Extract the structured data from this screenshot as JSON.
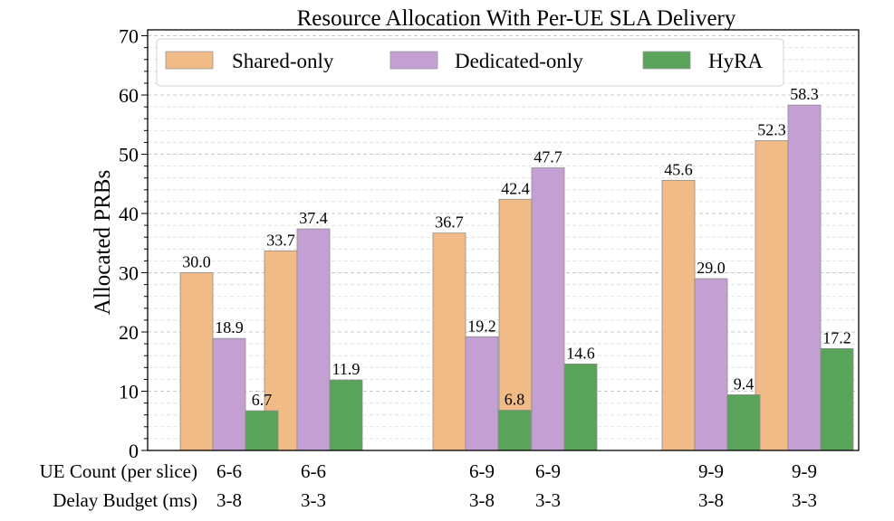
{
  "chart_data": {
    "type": "bar",
    "title": "Resource Allocation With Per-UE SLA Delivery",
    "ylabel": "Allocated PRBs",
    "xlabel": "",
    "ylim": [
      0,
      71
    ],
    "yticks": [
      0,
      10,
      20,
      30,
      40,
      50,
      60,
      70
    ],
    "grid": true,
    "legend_position": "top",
    "categories": [
      "6-6 / 3-8",
      "6-6 / 3-3",
      "6-9 / 3-8",
      "6-9 / 3-3",
      "9-9 / 3-8",
      "9-9 / 3-3"
    ],
    "row_labels": [
      "UE Count (per slice)",
      "Delay Budget (ms)"
    ],
    "ue_count": [
      "6-6",
      "6-6",
      "6-9",
      "6-9",
      "9-9",
      "9-9"
    ],
    "delay_budget": [
      "3-8",
      "3-3",
      "3-8",
      "3-3",
      "3-8",
      "3-3"
    ],
    "series": [
      {
        "name": "Shared-only",
        "color": "#f0bb87",
        "values": [
          30.0,
          33.7,
          36.7,
          42.4,
          45.6,
          52.3
        ],
        "labels": [
          "30.0",
          "33.7",
          "36.7",
          "42.4",
          "45.6",
          "52.3"
        ]
      },
      {
        "name": "Dedicated-only",
        "color": "#c39fd3",
        "values": [
          18.9,
          37.4,
          19.2,
          47.7,
          29.0,
          58.3
        ],
        "labels": [
          "18.9",
          "37.4",
          "19.2",
          "47.7",
          "29.0",
          "58.3"
        ]
      },
      {
        "name": "HyRA",
        "color": "#5aa35a",
        "values": [
          6.7,
          11.9,
          6.8,
          14.6,
          9.4,
          17.2
        ],
        "labels": [
          "6.7",
          "11.9",
          "6.8",
          "14.6",
          "9.4",
          "17.2"
        ]
      }
    ]
  }
}
